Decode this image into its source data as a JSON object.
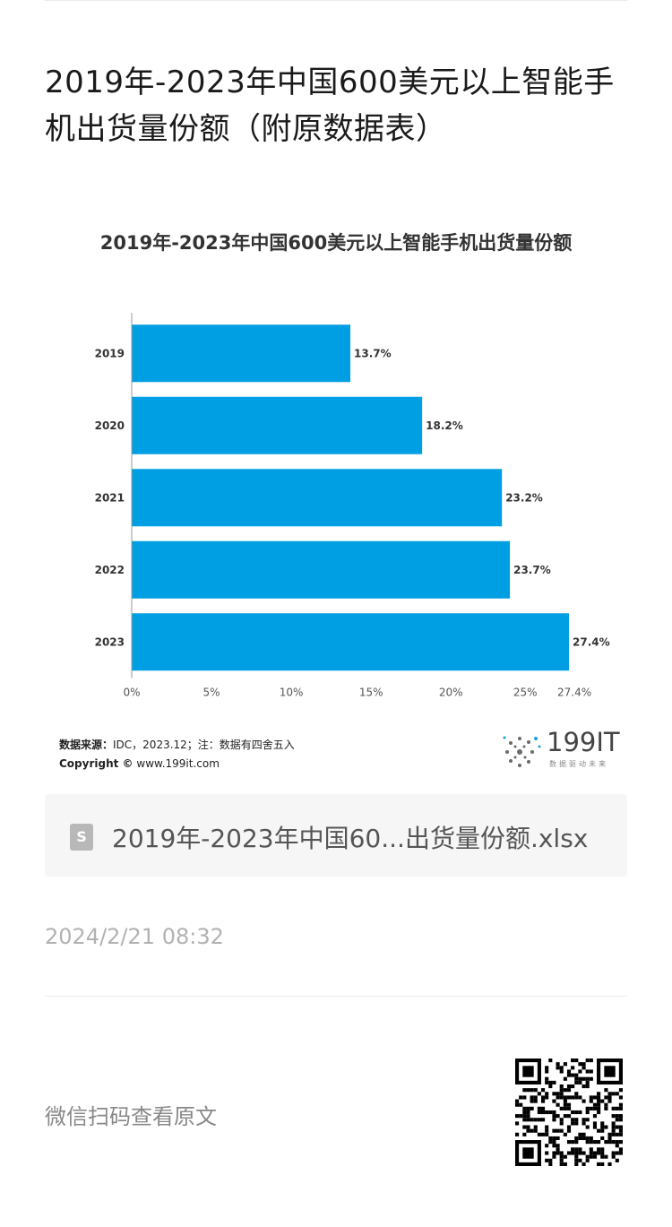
{
  "article": {
    "title": "2019年-2023年中国600美元以上智能手机出货量份额（附原数据表）"
  },
  "chart": {
    "footer_source_label": "数据来源：",
    "footer_source_text": "IDC，2023.12；注：数据有四舍五入",
    "footer_copyright_label": "Copyright ©",
    "footer_copyright_text": "www.199it.com",
    "logo_text": "199IT",
    "logo_sub": "数据驱动未来",
    "bar_color": "#009fe3"
  },
  "chart_data": {
    "type": "bar",
    "orientation": "horizontal",
    "title": "2019年-2023年中国600美元以上智能手机出货量份额",
    "categories": [
      "2019",
      "2020",
      "2021",
      "2022",
      "2023"
    ],
    "values": [
      13.7,
      18.2,
      23.2,
      23.7,
      27.4
    ],
    "data_labels": [
      "13.7%",
      "18.2%",
      "23.2%",
      "23.7%",
      "27.4%"
    ],
    "xlim": [
      0,
      27.4
    ],
    "xticks": [
      0,
      5,
      10,
      15,
      20,
      25,
      27.4
    ],
    "xtick_labels": [
      "0%",
      "5%",
      "10%",
      "15%",
      "20%",
      "25%",
      "27.4%"
    ],
    "xlabel": "",
    "ylabel": "",
    "grid": false,
    "legend": "none"
  },
  "attachment": {
    "file_icon_letter": "S",
    "file_name": "2019年-2023年中国60...出货量份额.xlsx"
  },
  "meta": {
    "timestamp": "2024/2/21 08:32",
    "qr_hint": "微信扫码查看原文"
  }
}
